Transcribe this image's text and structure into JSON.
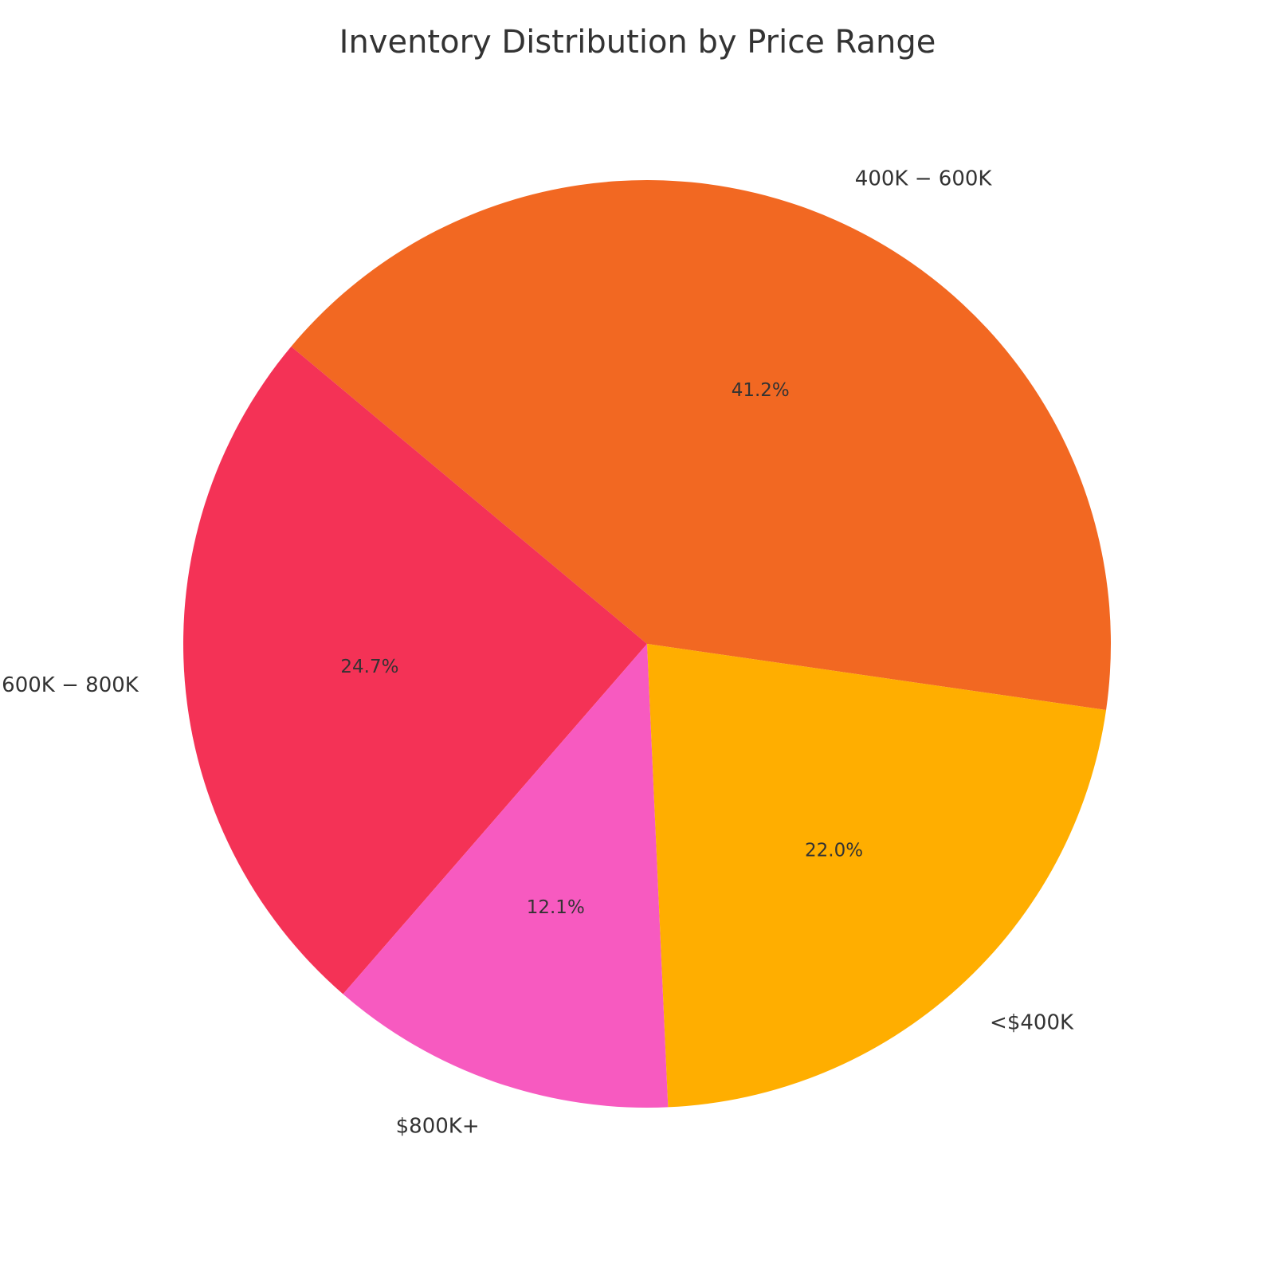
{
  "chart_data": {
    "type": "pie",
    "title": "Inventory Distribution by Price Range",
    "slices": [
      {
        "label": "$400K-$600K",
        "display_label": "400K − 600K",
        "percent_label": "41.2%",
        "value": 41.2,
        "color": "#F26822"
      },
      {
        "label": "$600K-$800K",
        "display_label": "600K − 800K",
        "percent_label": "24.7%",
        "value": 24.7,
        "color": "#F43256"
      },
      {
        "label": "$800K+",
        "display_label": "$800K+",
        "percent_label": "12.1%",
        "value": 12.1,
        "color": "#F75AC0"
      },
      {
        "label": "<$400K",
        "display_label": "<$400K",
        "percent_label": "22.0%",
        "value": 22.0,
        "color": "#FFAE00"
      }
    ],
    "start_angle_deg": -8.2,
    "direction": "counterclockwise",
    "legend": "none"
  }
}
